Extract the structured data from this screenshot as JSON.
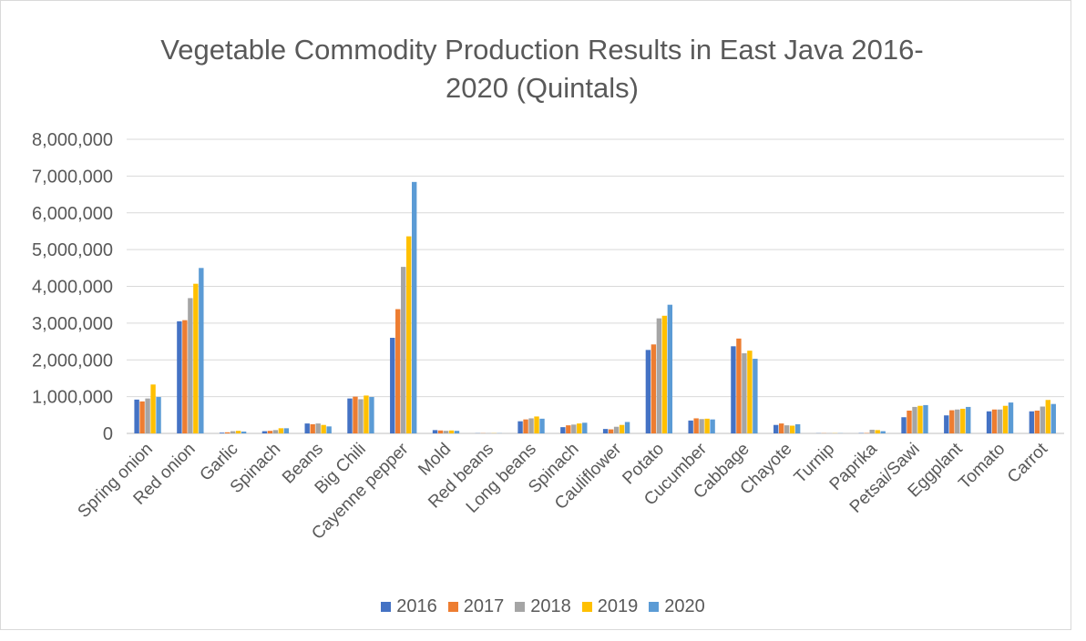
{
  "chart_data": {
    "type": "bar",
    "title": "Vegetable Commodity Production Results in East Java 2016-\n2020 (Quintals)",
    "xlabel": "",
    "ylabel": "",
    "ylim": [
      0,
      8000000
    ],
    "yticks": [
      "0",
      "1,000,000",
      "2,000,000",
      "3,000,000",
      "4,000,000",
      "5,000,000",
      "6,000,000",
      "7,000,000",
      "8,000,000"
    ],
    "grid": true,
    "legend_position": "bottom",
    "categories": [
      "Spring onion",
      "Red onion",
      "Garlic",
      "Spinach",
      "Beans",
      "Big Chili",
      "Cayenne pepper",
      "Mold",
      "Red beans",
      "Long beans",
      "Spinach",
      "Cauliflower",
      "Potato",
      "Cucumber",
      "Cabbage",
      "Chayote",
      "Turnip",
      "Paprika",
      "Petsai/Sawi",
      "Eggplant",
      "Tomato",
      "Carrot"
    ],
    "series": [
      {
        "name": "2016",
        "color": "#4472c4",
        "values": [
          920000,
          3050000,
          20000,
          60000,
          270000,
          950000,
          2600000,
          90000,
          5000,
          330000,
          170000,
          120000,
          2270000,
          350000,
          2370000,
          230000,
          5000,
          10000,
          440000,
          490000,
          600000,
          600000
        ]
      },
      {
        "name": "2017",
        "color": "#ed7d31",
        "values": [
          870000,
          3080000,
          30000,
          70000,
          250000,
          1000000,
          3380000,
          80000,
          5000,
          380000,
          220000,
          110000,
          2420000,
          410000,
          2580000,
          270000,
          5000,
          10000,
          620000,
          630000,
          650000,
          620000
        ]
      },
      {
        "name": "2018",
        "color": "#a5a5a5",
        "values": [
          950000,
          3680000,
          60000,
          90000,
          270000,
          930000,
          4530000,
          70000,
          5000,
          410000,
          240000,
          180000,
          3130000,
          390000,
          2180000,
          220000,
          5000,
          100000,
          720000,
          650000,
          650000,
          730000
        ]
      },
      {
        "name": "2019",
        "color": "#ffc000",
        "values": [
          1330000,
          4070000,
          70000,
          140000,
          230000,
          1030000,
          5360000,
          80000,
          5000,
          460000,
          270000,
          230000,
          3200000,
          400000,
          2250000,
          210000,
          5000,
          90000,
          750000,
          670000,
          750000,
          910000
        ]
      },
      {
        "name": "2020",
        "color": "#5b9bd5",
        "values": [
          990000,
          4500000,
          50000,
          140000,
          190000,
          990000,
          6840000,
          70000,
          5000,
          400000,
          290000,
          310000,
          3500000,
          380000,
          2030000,
          250000,
          5000,
          60000,
          770000,
          720000,
          840000,
          800000
        ]
      }
    ]
  }
}
